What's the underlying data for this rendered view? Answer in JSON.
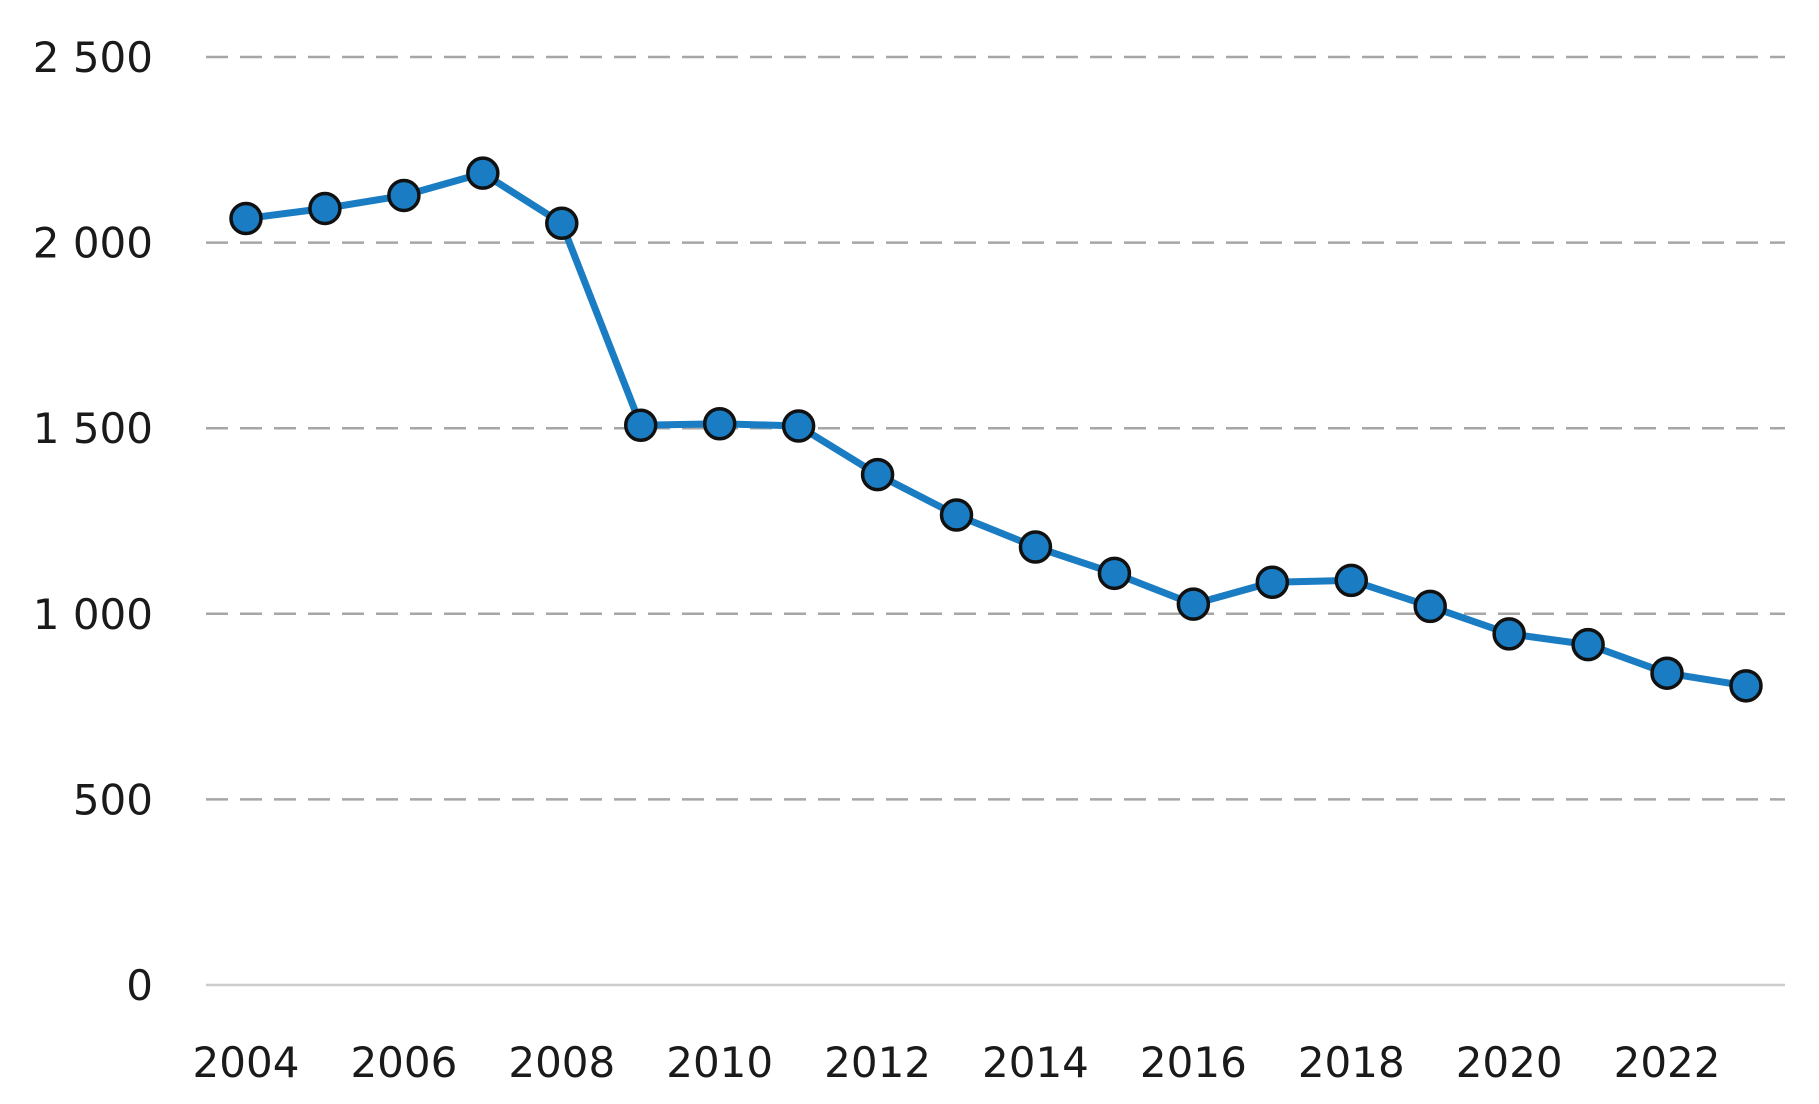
{
  "chart_data": {
    "type": "line",
    "title": "",
    "xlabel": "",
    "ylabel": "",
    "x": [
      2004,
      2005,
      2006,
      2007,
      2008,
      2009,
      2010,
      2011,
      2012,
      2013,
      2014,
      2015,
      2016,
      2017,
      2018,
      2019,
      2020,
      2021,
      2022,
      2023
    ],
    "series": [
      {
        "values": [
          2065,
          2092,
          2127,
          2187,
          2052,
          1508,
          1512,
          1506,
          1375,
          1266,
          1180,
          1109,
          1026,
          1085,
          1090,
          1020,
          946,
          917,
          840,
          806
        ],
        "color": "#1a7dc3"
      }
    ],
    "ylim": [
      0,
      2500
    ],
    "y_ticks": [
      0,
      500,
      1000,
      1500,
      2000,
      2500
    ],
    "y_tick_labels": [
      "0",
      "500",
      "1 000",
      "1 500",
      "2 000",
      "2 500"
    ],
    "x_ticks": [
      2004,
      2006,
      2008,
      2010,
      2012,
      2014,
      2016,
      2018,
      2020,
      2022
    ],
    "x_tick_labels": [
      "2004",
      "2006",
      "2008",
      "2010",
      "2012",
      "2014",
      "2016",
      "2018",
      "2020",
      "2022"
    ],
    "grid": true,
    "grid_style": "dashed",
    "legend": "none",
    "marker": "circle"
  }
}
